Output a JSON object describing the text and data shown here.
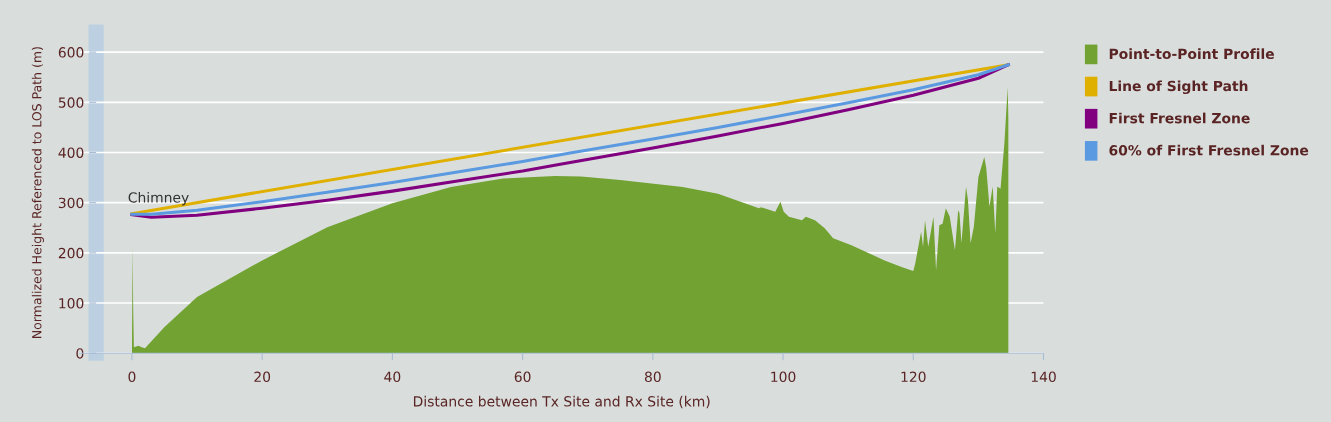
{
  "chart_data": {
    "type": "line",
    "xlabel": "Distance between Tx Site and Rx Site (km)",
    "ylabel": "Normalized Height Referenced to LOS Path (m)",
    "xlim": [
      -8,
      140
    ],
    "xticks": [
      0,
      20,
      40,
      60,
      80,
      100,
      120,
      140
    ],
    "ylim": [
      0,
      640
    ],
    "yticks": [
      0,
      100,
      200,
      300,
      400,
      500,
      600
    ],
    "grid": "y",
    "legend": "right",
    "marker": "none",
    "line_style": "solid",
    "annotations": [
      {
        "text": "Chimney",
        "x": 0,
        "y": 278
      }
    ],
    "series": [
      {
        "name": "Point-to-Point Profile",
        "type": "area",
        "color": "#72a232",
        "x": [
          0,
          0.1,
          0.2,
          0.3,
          1,
          1.5,
          2,
          5,
          10,
          20,
          30,
          40,
          49,
          57,
          65,
          69,
          75,
          84.6,
          90,
          96.3,
          96.6,
          98.8,
          99.6,
          100.1,
          100.9,
          102.9,
          103.5,
          104.9,
          106.4,
          107.7,
          110.5,
          115.6,
          118.2,
          120.0,
          120.3,
          121.2,
          121.5,
          121.8,
          122.3,
          123.1,
          123.5,
          124.0,
          124.5,
          125.0,
          125.6,
          126.4,
          126.9,
          127.1,
          127.4,
          128.1,
          128.4,
          128.8,
          129.3,
          130.0,
          130.9,
          131.2,
          131.7,
          132.2,
          132.6,
          132.9,
          133.4,
          134.0,
          134.5,
          134.6
        ],
        "values": [
          0,
          210,
          80,
          12,
          15,
          12,
          10,
          52,
          112,
          185,
          251,
          299,
          331,
          348,
          353,
          352,
          345,
          331,
          318,
          289,
          291,
          282,
          302,
          282,
          272,
          265,
          272,
          265,
          249,
          229,
          215,
          185,
          172,
          164,
          179,
          242,
          212,
          265,
          212,
          272,
          165,
          255,
          258,
          289,
          272,
          205,
          285,
          279,
          219,
          332,
          305,
          219,
          252,
          351,
          391,
          370,
          292,
          332,
          239,
          332,
          328,
          420,
          530,
          470
        ]
      },
      {
        "name": "Line of Sight Path",
        "color": "#e0b000",
        "x": [
          0,
          134.6
        ],
        "values": [
          278,
          575
        ]
      },
      {
        "name": "First Fresnel Zone",
        "color": "#800080",
        "x": [
          0,
          3,
          10,
          20,
          30,
          40,
          50,
          60,
          67.3,
          80,
          90,
          100,
          110,
          120,
          130,
          134.6
        ],
        "values": [
          276,
          271,
          275,
          289,
          305,
          323,
          343,
          363,
          380,
          409,
          433,
          458,
          485,
          514,
          548,
          575
        ]
      },
      {
        "name": "60% of First Fresnel Zone",
        "color": "#5b9ae0",
        "x": [
          0,
          3,
          10,
          20,
          30,
          40,
          50,
          60,
          67.3,
          80,
          90,
          100,
          110,
          120,
          130,
          134.6
        ],
        "values": [
          277,
          277,
          285,
          302,
          321,
          340,
          361,
          382,
          399,
          427,
          450,
          474,
          499,
          525,
          555,
          575
        ]
      }
    ]
  }
}
